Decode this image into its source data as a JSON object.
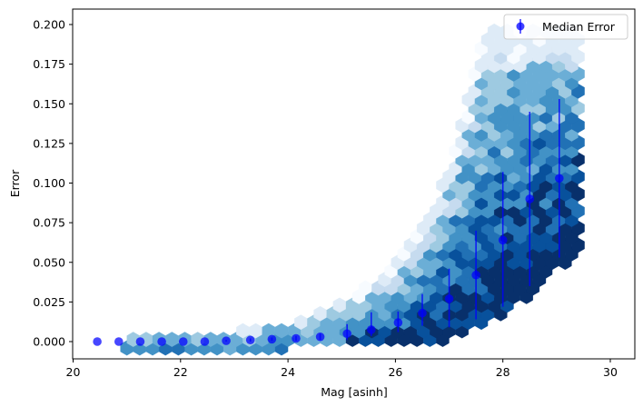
{
  "chart_data": {
    "type": "scatter",
    "subtype": "hexbin-with-errorbars",
    "title": "",
    "xlabel": "Mag [asinh]",
    "ylabel": "Error",
    "xlim": [
      20.0,
      30.5
    ],
    "ylim": [
      -0.01,
      0.21
    ],
    "xticks": [
      20,
      22,
      24,
      26,
      28,
      30
    ],
    "xtick_labels": [
      "20",
      "22",
      "24",
      "26",
      "28",
      "30"
    ],
    "yticks": [
      0.0,
      0.025,
      0.05,
      0.075,
      0.1,
      0.125,
      0.15,
      0.175,
      0.2
    ],
    "ytick_labels": [
      "0.000",
      "0.025",
      "0.050",
      "0.075",
      "0.100",
      "0.125",
      "0.150",
      "0.175",
      "0.200"
    ],
    "grid": false,
    "legend": {
      "position": "upper right",
      "entries": [
        "Median Error"
      ]
    },
    "colormap": "Blues",
    "series": [
      {
        "name": "Median Error",
        "color": "#0000ff",
        "x": [
          20.45,
          20.85,
          21.25,
          21.65,
          22.05,
          22.45,
          22.85,
          23.3,
          23.7,
          24.15,
          24.6,
          25.1,
          25.55,
          26.05,
          26.5,
          27.0,
          27.5,
          28.0,
          28.5,
          29.05
        ],
        "y": [
          0.0,
          0.0,
          0.0,
          0.0,
          0.0,
          0.0,
          0.0005,
          0.001,
          0.0015,
          0.002,
          0.003,
          0.005,
          0.0075,
          0.012,
          0.018,
          0.027,
          0.042,
          0.064,
          0.09,
          0.103
        ],
        "yerr_low": [
          0.0,
          0.0,
          0.0,
          0.0,
          0.0,
          0.0,
          0.0005,
          0.001,
          0.001,
          0.0015,
          0.002,
          0.004,
          0.004,
          0.006,
          0.008,
          0.018,
          0.028,
          0.042,
          0.055,
          0.05
        ],
        "yerr_high": [
          0.0,
          0.0,
          0.0,
          0.0,
          0.0,
          0.0,
          0.0005,
          0.001,
          0.001,
          0.0015,
          0.002,
          0.006,
          0.011,
          0.007,
          0.012,
          0.019,
          0.028,
          0.043,
          0.055,
          0.05
        ]
      }
    ],
    "hexbin_density": {
      "x_min": 21.0,
      "x_max": 29.4,
      "y_max": 0.2,
      "hex_width": 0.24,
      "hex_height": 0.0054,
      "curve_lower_edge": [
        [
          21.0,
          -0.003
        ],
        [
          24.0,
          -0.003
        ],
        [
          25.5,
          -0.002
        ],
        [
          26.5,
          0.0
        ],
        [
          27.0,
          0.003
        ],
        [
          27.5,
          0.01
        ],
        [
          28.0,
          0.018
        ],
        [
          28.5,
          0.03
        ],
        [
          29.0,
          0.045
        ],
        [
          29.4,
          0.052
        ]
      ],
      "curve_upper_edge": [
        [
          21.0,
          0.003
        ],
        [
          22.5,
          0.005
        ],
        [
          23.5,
          0.008
        ],
        [
          24.5,
          0.016
        ],
        [
          25.5,
          0.035
        ],
        [
          26.0,
          0.05
        ],
        [
          26.5,
          0.075
        ],
        [
          27.0,
          0.11
        ],
        [
          27.3,
          0.15
        ],
        [
          27.6,
          0.195
        ],
        [
          28.0,
          0.2
        ],
        [
          29.4,
          0.2
        ]
      ]
    }
  }
}
